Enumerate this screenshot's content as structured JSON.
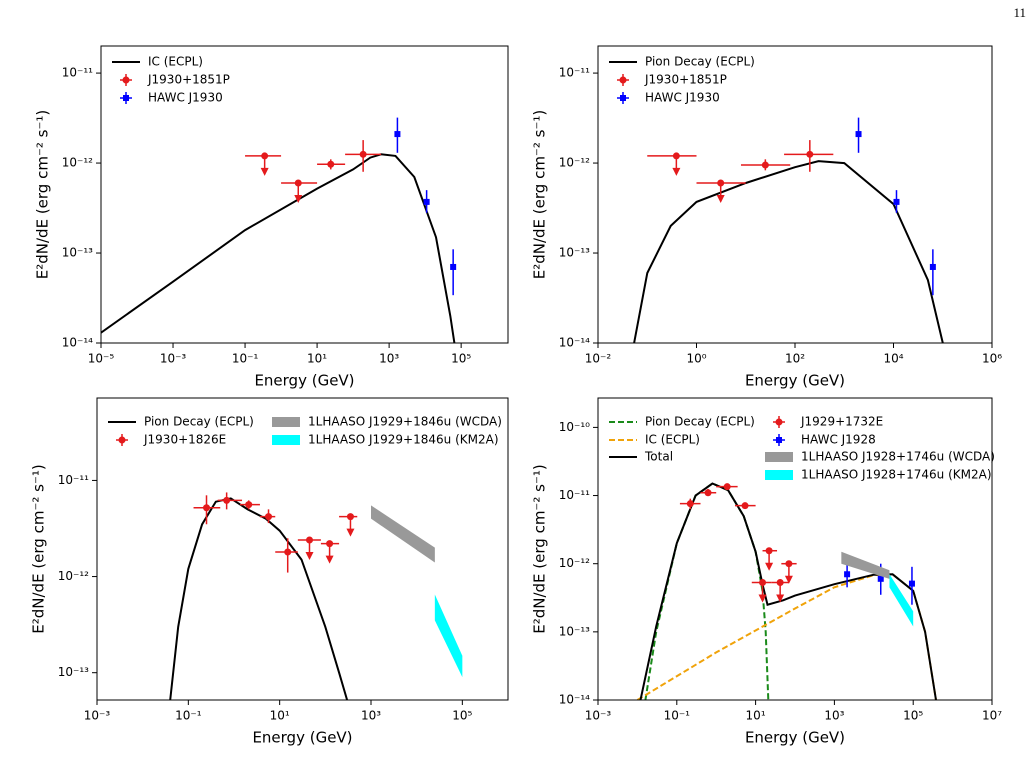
{
  "page_number": "11",
  "chart_data": [
    {
      "type": "line",
      "log_x": true,
      "log_y": true,
      "xlabel": "Energy (GeV)",
      "ylabel": "E²dN/dE (erg cm⁻² s⁻¹)",
      "xlim": [
        1e-05,
        2000000.0
      ],
      "ylim": [
        1e-14,
        2e-11
      ],
      "xticks": [
        {
          "value": 1e-05,
          "label": "10⁻⁵"
        },
        {
          "value": 0.001,
          "label": "10⁻³"
        },
        {
          "value": 0.1,
          "label": "10⁻¹"
        },
        {
          "value": 10,
          "label": "10¹"
        },
        {
          "value": 1000,
          "label": "10³"
        },
        {
          "value": 100000,
          "label": "10⁵"
        }
      ],
      "yticks": [
        {
          "value": 1e-14,
          "label": "10⁻¹⁴"
        },
        {
          "value": 1e-13,
          "label": "10⁻¹³"
        },
        {
          "value": 1e-12,
          "label": "10⁻¹²"
        },
        {
          "value": 1e-11,
          "label": "10⁻¹¹"
        }
      ],
      "series": [
        {
          "name": "IC (ECPL)",
          "kind": "line",
          "color": "#000000",
          "dashed": false,
          "x": [
            1e-05,
            0.001,
            0.1,
            10,
            100,
            300,
            600,
            1500,
            5000,
            20000,
            50000,
            65000
          ],
          "values": [
            1.3e-14,
            4.8e-14,
            1.8e-13,
            5.2e-13,
            8.5e-13,
            1.15e-12,
            1.25e-12,
            1.2e-12,
            7e-13,
            1.5e-13,
            2e-14,
            1e-14
          ]
        },
        {
          "name": "J1930+1851P",
          "kind": "points",
          "marker": "circle",
          "color": "#e41a1c",
          "x": [
            0.35,
            3,
            24,
            190
          ],
          "values": [
            1.2e-12,
            6e-13,
            9.7e-13,
            1.25e-12
          ],
          "x_low": [
            0.1,
            1,
            10,
            60
          ],
          "x_high": [
            1,
            10,
            60,
            600
          ],
          "y_low": [
            null,
            null,
            8.5e-13,
            8e-13
          ],
          "y_high": [
            null,
            null,
            1.1e-12,
            1.8e-12
          ],
          "upper_limit": [
            true,
            true,
            false,
            false
          ]
        },
        {
          "name": "HAWC J1930",
          "kind": "points",
          "marker": "square",
          "color": "#0000ff",
          "x": [
            1700,
            11000,
            60000
          ],
          "values": [
            2.1e-12,
            3.7e-13,
            7e-14
          ],
          "x_low": [
            null,
            null,
            null
          ],
          "x_high": [
            null,
            null,
            null
          ],
          "y_low": [
            1.3e-12,
            2.8e-13,
            3.4e-14
          ],
          "y_high": [
            3.2e-12,
            5e-13,
            1.1e-13
          ],
          "upper_limit": [
            false,
            false,
            false
          ]
        }
      ]
    },
    {
      "type": "line",
      "log_x": true,
      "log_y": true,
      "xlabel": "Energy (GeV)",
      "ylabel": "E²dN/dE (erg cm⁻² s⁻¹)",
      "xlim": [
        0.01,
        1000000
      ],
      "ylim": [
        1e-14,
        2e-11
      ],
      "xticks": [
        {
          "value": 0.01,
          "label": "10⁻²"
        },
        {
          "value": 1,
          "label": "10⁰"
        },
        {
          "value": 100,
          "label": "10²"
        },
        {
          "value": 10000,
          "label": "10⁴"
        },
        {
          "value": 1000000,
          "label": "10⁶"
        }
      ],
      "yticks": [
        {
          "value": 1e-14,
          "label": "10⁻¹⁴"
        },
        {
          "value": 1e-13,
          "label": "10⁻¹³"
        },
        {
          "value": 1e-12,
          "label": "10⁻¹²"
        },
        {
          "value": 1e-11,
          "label": "10⁻¹¹"
        }
      ],
      "series": [
        {
          "name": "Pion Decay (ECPL)",
          "kind": "line",
          "color": "#000000",
          "dashed": false,
          "x": [
            0.054,
            0.1,
            0.3,
            1,
            10,
            100,
            300,
            1000,
            10000,
            50000,
            100000
          ],
          "values": [
            1e-14,
            6e-14,
            2e-13,
            3.7e-13,
            6e-13,
            9e-13,
            1.05e-12,
            1e-12,
            3.5e-13,
            5e-14,
            1e-14
          ]
        },
        {
          "name": "J1930+1851P",
          "kind": "points",
          "marker": "circle",
          "color": "#e41a1c",
          "x": [
            0.39,
            3.1,
            25,
            200
          ],
          "values": [
            1.2e-12,
            6e-13,
            9.5e-13,
            1.25e-12
          ],
          "x_low": [
            0.1,
            1,
            8,
            60
          ],
          "x_high": [
            1,
            10,
            80,
            600
          ],
          "y_low": [
            null,
            null,
            8.3e-13,
            8e-13
          ],
          "y_high": [
            null,
            null,
            1.1e-12,
            1.8e-12
          ],
          "upper_limit": [
            true,
            true,
            false,
            false
          ]
        },
        {
          "name": "HAWC J1930",
          "kind": "points",
          "marker": "square",
          "color": "#0000ff",
          "x": [
            1950,
            11500,
            63000
          ],
          "values": [
            2.1e-12,
            3.7e-13,
            7e-14
          ],
          "x_low": [
            null,
            null,
            null
          ],
          "x_high": [
            null,
            null,
            null
          ],
          "y_low": [
            1.3e-12,
            2.8e-13,
            3.4e-14
          ],
          "y_high": [
            3.2e-12,
            5e-13,
            1.1e-13
          ],
          "upper_limit": [
            false,
            false,
            false
          ]
        }
      ]
    },
    {
      "type": "line",
      "log_x": true,
      "log_y": true,
      "xlabel": "Energy (GeV)",
      "ylabel": "E²dN/dE (erg cm⁻² s⁻¹)",
      "xlim": [
        0.001,
        1000000
      ],
      "ylim": [
        5.2e-14,
        7.2e-11
      ],
      "xticks": [
        {
          "value": 0.001,
          "label": "10⁻³"
        },
        {
          "value": 0.1,
          "label": "10⁻¹"
        },
        {
          "value": 10,
          "label": "10¹"
        },
        {
          "value": 1000,
          "label": "10³"
        },
        {
          "value": 100000,
          "label": "10⁵"
        }
      ],
      "yticks": [
        {
          "value": 1e-13,
          "label": "10⁻¹³"
        },
        {
          "value": 1e-12,
          "label": "10⁻¹²"
        },
        {
          "value": 1e-11,
          "label": "10⁻¹¹"
        }
      ],
      "series": [
        {
          "name": "Pion Decay (ECPL)",
          "kind": "line",
          "color": "#000000",
          "dashed": false,
          "x": [
            0.04,
            0.06,
            0.1,
            0.2,
            0.4,
            0.85,
            2,
            5,
            10,
            30,
            100,
            200,
            300
          ],
          "values": [
            5.2e-14,
            3e-13,
            1.2e-12,
            3.5e-12,
            6e-12,
            6.5e-12,
            5e-12,
            4e-12,
            3e-12,
            1.5e-12,
            3e-13,
            1e-13,
            5.2e-14
          ]
        },
        {
          "name": "J1930+1826E",
          "kind": "points",
          "marker": "circle",
          "color": "#e41a1c",
          "x": [
            0.25,
            0.69,
            2.1,
            5.7,
            15,
            45,
            124,
            355
          ],
          "values": [
            5.2e-12,
            6.2e-12,
            5.6e-12,
            4.2e-12,
            1.8e-12,
            2.4e-12,
            2.2e-12,
            4.2e-12
          ],
          "x_low": [
            0.13,
            0.44,
            1.35,
            3.7,
            8,
            25,
            80,
            200
          ],
          "x_high": [
            0.5,
            1.5,
            3.7,
            8,
            25,
            80,
            200,
            500
          ],
          "y_low": [
            3.5e-12,
            5e-12,
            5e-12,
            3.6e-12,
            1.1e-12,
            null,
            null,
            null
          ],
          "y_high": [
            7e-12,
            7.5e-12,
            6.2e-12,
            5e-12,
            2.5e-12,
            null,
            null,
            null
          ],
          "upper_limit": [
            false,
            false,
            false,
            false,
            false,
            true,
            true,
            true
          ]
        },
        {
          "name": "1LHAASO J1929+1846u (WCDA)",
          "kind": "band",
          "color": "#999999",
          "x": [
            1000,
            25000
          ],
          "lower": [
            4e-12,
            1.4e-12
          ],
          "upper": [
            5.5e-12,
            2e-12
          ]
        },
        {
          "name": "1LHAASO J1929+1846u (KM2A)",
          "kind": "band",
          "color": "#00ffff",
          "x": [
            25000,
            100000
          ],
          "lower": [
            3.5e-13,
            9e-14
          ],
          "upper": [
            6.5e-13,
            1.5e-13
          ]
        }
      ]
    },
    {
      "type": "line",
      "log_x": true,
      "log_y": true,
      "xlabel": "Energy (GeV)",
      "ylabel": "E²dN/dE (erg cm⁻² s⁻¹)",
      "xlim": [
        0.001,
        10000000
      ],
      "ylim": [
        1e-14,
        2.7e-10
      ],
      "xticks": [
        {
          "value": 0.001,
          "label": "10⁻³"
        },
        {
          "value": 0.1,
          "label": "10⁻¹"
        },
        {
          "value": 10,
          "label": "10¹"
        },
        {
          "value": 1000,
          "label": "10³"
        },
        {
          "value": 100000,
          "label": "10⁵"
        },
        {
          "value": 10000000,
          "label": "10⁷"
        }
      ],
      "yticks": [
        {
          "value": 1e-14,
          "label": "10⁻¹⁴"
        },
        {
          "value": 1e-13,
          "label": "10⁻¹³"
        },
        {
          "value": 1e-12,
          "label": "10⁻¹²"
        },
        {
          "value": 1e-11,
          "label": "10⁻¹¹"
        },
        {
          "value": 1e-10,
          "label": "10⁻¹⁰"
        }
      ],
      "series": [
        {
          "name": "Pion Decay (ECPL)",
          "kind": "line",
          "color": "#1a8a1a",
          "dashed": true,
          "x": [
            0.016,
            0.03,
            0.1,
            0.3,
            0.8,
            2,
            5,
            10,
            15,
            18,
            21
          ],
          "values": [
            1e-14,
            1e-13,
            2e-12,
            1e-11,
            1.5e-11,
            1.2e-11,
            5e-12,
            1.5e-12,
            4e-13,
            1e-13,
            1e-14
          ]
        },
        {
          "name": "IC (ECPL)",
          "kind": "line",
          "color": "#f0a30a",
          "dashed": true,
          "x": [
            0.01,
            1,
            100,
            1000,
            10000,
            30000,
            100000,
            200000,
            380000
          ],
          "values": [
            1e-14,
            5e-14,
            2.2e-13,
            4.5e-13,
            6.8e-13,
            7e-13,
            4e-13,
            1e-13,
            1e-14
          ]
        },
        {
          "name": "Total",
          "kind": "line",
          "color": "#000000",
          "dashed": false,
          "x": [
            0.012,
            0.03,
            0.1,
            0.3,
            0.8,
            2,
            5,
            10,
            15,
            20,
            50,
            100,
            1000,
            10000,
            30000,
            100000,
            200000,
            380000
          ],
          "values": [
            1e-14,
            1.2e-13,
            2e-12,
            1e-11,
            1.5e-11,
            1.2e-11,
            5e-12,
            1.5e-12,
            5e-13,
            2.5e-13,
            2.9e-13,
            3.4e-13,
            5e-13,
            6.9e-13,
            7e-13,
            4e-13,
            1e-13,
            1e-14
          ]
        },
        {
          "name": "J1929+1732E",
          "kind": "points",
          "marker": "circle",
          "color": "#e41a1c",
          "x": [
            0.22,
            0.62,
            1.9,
            5.4,
            15,
            22,
            42,
            70
          ],
          "values": [
            7.6e-12,
            1.1e-11,
            1.35e-11,
            7.1e-12,
            5.3e-13,
            1.55e-12,
            5.3e-13,
            1e-12
          ],
          "x_low": [
            0.12,
            0.4,
            1,
            3,
            8,
            15,
            25,
            45
          ],
          "x_high": [
            0.4,
            1,
            3.5,
            10,
            25,
            35,
            70,
            110
          ],
          "y_low": [
            6.3e-12,
            1e-11,
            1.25e-11,
            6.5e-12,
            null,
            null,
            null,
            null
          ],
          "y_high": [
            9e-12,
            1.25e-11,
            1.45e-11,
            7.7e-12,
            null,
            null,
            null,
            null
          ],
          "upper_limit": [
            false,
            false,
            false,
            false,
            true,
            true,
            true,
            true
          ]
        },
        {
          "name": "HAWC J1928",
          "kind": "points",
          "marker": "square",
          "color": "#0000ff",
          "x": [
            2100,
            15000,
            93000
          ],
          "values": [
            7e-13,
            6e-13,
            5.1e-13
          ],
          "x_low": [
            null,
            null,
            null
          ],
          "x_high": [
            null,
            null,
            null
          ],
          "y_low": [
            4.5e-13,
            3.5e-13,
            2.5e-13
          ],
          "y_high": [
            1.1e-12,
            1e-12,
            9e-13
          ],
          "upper_limit": [
            false,
            false,
            false
          ]
        },
        {
          "name": "1LHAASO J1928+1746u (WCDA)",
          "kind": "band",
          "color": "#999999",
          "x": [
            1500,
            25000
          ],
          "lower": [
            1e-12,
            6e-13
          ],
          "upper": [
            1.5e-12,
            8e-13
          ]
        },
        {
          "name": "1LHAASO J1928+1746u (KM2A)",
          "kind": "band",
          "color": "#00ffff",
          "x": [
            25000,
            100000
          ],
          "lower": [
            4.5e-13,
            1.2e-13
          ],
          "upper": [
            7e-13,
            2e-13
          ]
        }
      ]
    }
  ]
}
